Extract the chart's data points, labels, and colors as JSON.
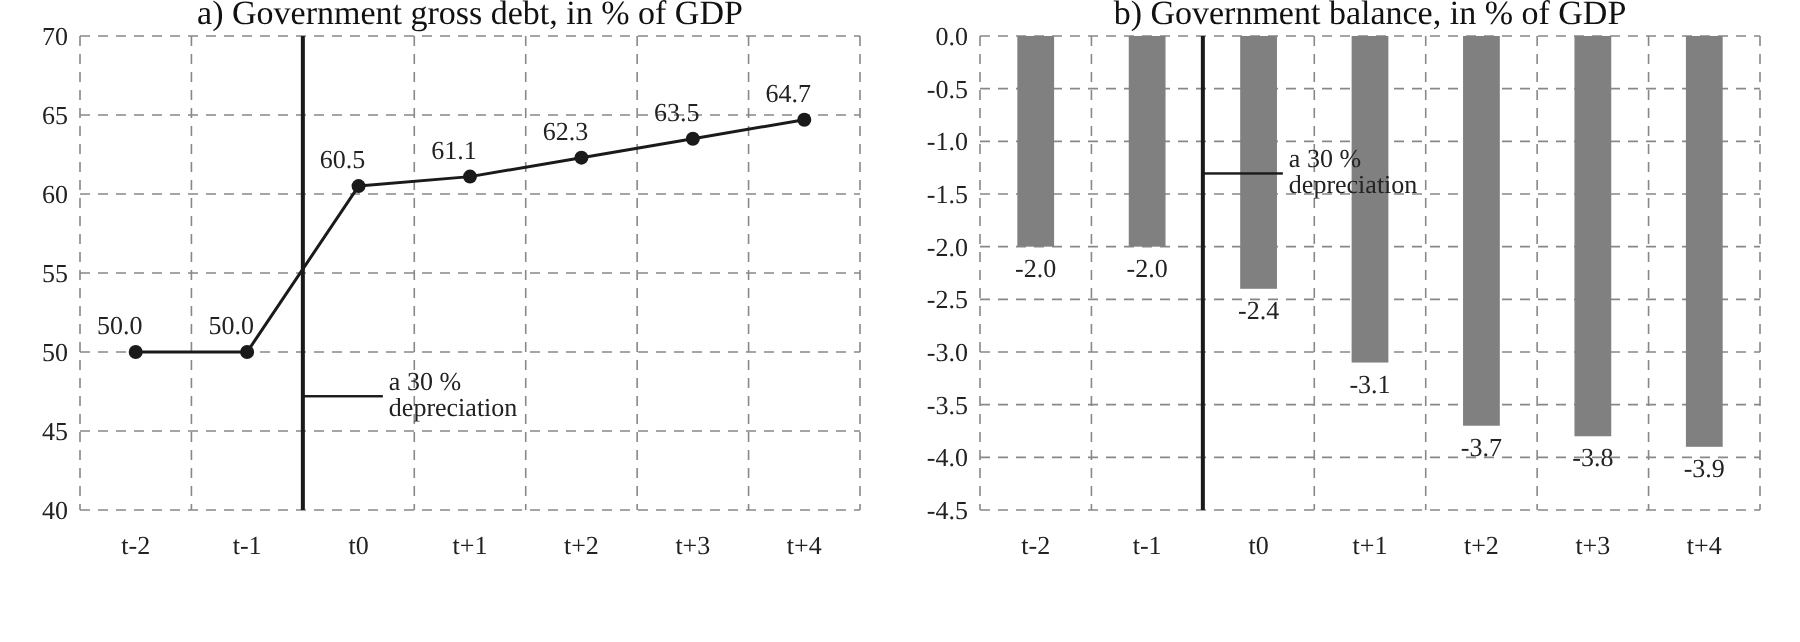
{
  "chart_data": [
    {
      "type": "line",
      "title": "a) Government gross debt, in % of GDP",
      "categories": [
        "t-2",
        "t-1",
        "t0",
        "t+1",
        "t+2",
        "t+3",
        "t+4"
      ],
      "series": [
        {
          "color": "#1a1a1a",
          "values": [
            50.0,
            50.0,
            60.5,
            61.1,
            62.3,
            63.5,
            64.7
          ],
          "value_labels": [
            "50.0",
            "50.0",
            "60.5",
            "61.1",
            "62.3",
            "63.5",
            "64.7"
          ]
        }
      ],
      "ylim": [
        40,
        70
      ],
      "yticks": [
        40,
        45,
        50,
        55,
        60,
        65,
        70
      ],
      "grid": true,
      "marker": "circle",
      "line_style": "solid",
      "annotations": [
        "a 30 % depreciation"
      ]
    },
    {
      "type": "bar",
      "title": "b) Government balance, in % of GDP",
      "categories": [
        "t-2",
        "t-1",
        "t0",
        "t+1",
        "t+2",
        "t+3",
        "t+4"
      ],
      "series": [
        {
          "color": "#808080",
          "values": [
            -2.0,
            -2.0,
            -2.4,
            -3.1,
            -3.7,
            -3.8,
            -3.9
          ],
          "value_labels": [
            "-2.0",
            "-2.0",
            "-2.4",
            "-3.1",
            "-3.7",
            "-3.8",
            "-3.9"
          ]
        }
      ],
      "ylim": [
        -4.5,
        0.0
      ],
      "yticks": [
        {
          "value": 0,
          "label": "0.0"
        },
        {
          "value": -0.5,
          "label": "-0.5"
        },
        {
          "value": -1,
          "label": "-1.0"
        },
        {
          "value": -1.5,
          "label": "-1.5"
        },
        {
          "value": -2,
          "label": "-2.0"
        },
        {
          "value": -2.5,
          "label": "-2.5"
        },
        {
          "value": -3,
          "label": "-3.0"
        },
        {
          "value": -3.5,
          "label": "-3.5"
        },
        {
          "value": -4,
          "label": "-4.0"
        },
        {
          "value": -4.5,
          "label": "-4.5"
        }
      ],
      "grid": true,
      "annotations": [
        "a 30 % depreciation"
      ]
    }
  ]
}
